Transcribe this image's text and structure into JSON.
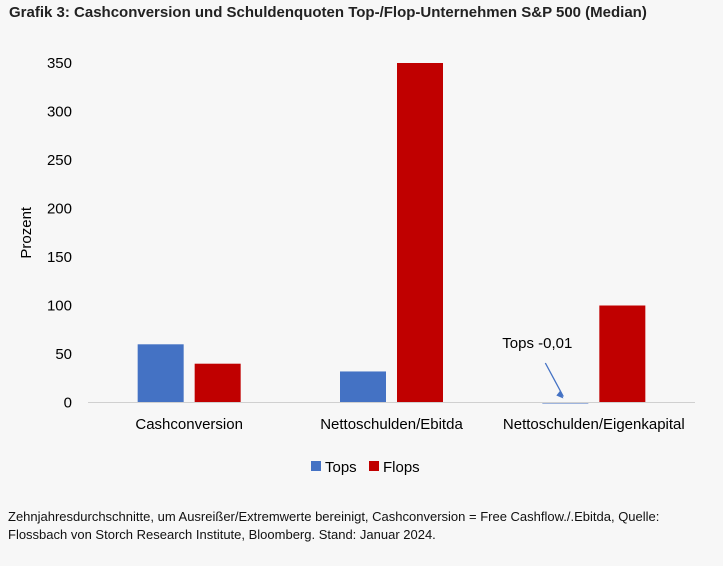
{
  "title": "Grafik 3: Cashconversion und Schuldenquoten Top-/Flop-Unternehmen S&P 500 (Median)",
  "chart_data": {
    "type": "bar",
    "title": "Grafik 3: Cashconversion und Schuldenquoten Top-/Flop-Unternehmen S&P 500 (Median)",
    "xlabel": "",
    "ylabel": "Prozent",
    "ylim": [
      0,
      350
    ],
    "yticks": [
      0,
      50,
      100,
      150,
      200,
      250,
      300,
      350
    ],
    "grid": false,
    "legend_position": "bottom",
    "categories": [
      "Cashconversion",
      "Nettoschulden/Ebitda",
      "Nettoschulden/Eigenkapital"
    ],
    "series": [
      {
        "name": "Tops",
        "color": "#4472c4",
        "values": [
          60,
          32,
          -0.01
        ]
      },
      {
        "name": "Flops",
        "color": "#c00000",
        "values": [
          40,
          350,
          100
        ]
      }
    ],
    "annotations": [
      {
        "text": "Tops -0,01",
        "category": "Nettoschulden/Eigenkapital",
        "series": "Tops"
      }
    ]
  },
  "footnote": {
    "line1": "Zehnjahresdurchschnitte, um Ausreißer/Extremwerte bereinigt, Cashconversion = Free Cashflow./.Ebitda, Quelle:",
    "line2": "Flossbach von Storch Research Institute, Bloomberg. Stand: Januar 2024."
  }
}
